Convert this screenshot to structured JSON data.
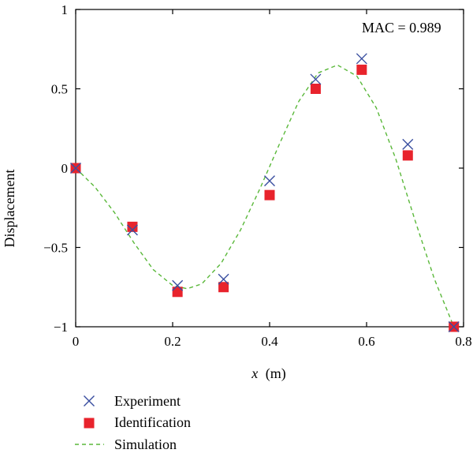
{
  "chart_data": {
    "type": "scatter",
    "title": "",
    "xlabel_var": "x",
    "xlabel_unit": "(m)",
    "ylabel": "Displacement",
    "xlim": [
      0,
      0.8
    ],
    "ylim": [
      -1,
      1
    ],
    "x_ticks": [
      0,
      0.2,
      0.4,
      0.6,
      0.8
    ],
    "x_tick_labels": [
      "0",
      "0.2",
      "0.4",
      "0.6",
      "0.8"
    ],
    "y_ticks": [
      -1,
      -0.5,
      0,
      0.5,
      1
    ],
    "y_tick_labels": [
      "−1",
      "−0.5",
      "0",
      "0.5",
      "1"
    ],
    "grid": false,
    "legend_position": "bottom-left",
    "annotation": "MAC = 0.989",
    "series": [
      {
        "name": "Experiment",
        "marker": "x",
        "color": "#3a4fa0",
        "x": [
          0,
          0.117,
          0.21,
          0.305,
          0.4,
          0.495,
          0.59,
          0.685,
          0.78
        ],
        "y": [
          0,
          -0.39,
          -0.74,
          -0.7,
          -0.08,
          0.56,
          0.69,
          0.15,
          -1.0
        ]
      },
      {
        "name": "Identification",
        "marker": "square",
        "color": "#e8232c",
        "x": [
          0,
          0.117,
          0.21,
          0.305,
          0.4,
          0.495,
          0.59,
          0.685,
          0.78
        ],
        "y": [
          0,
          -0.37,
          -0.78,
          -0.75,
          -0.17,
          0.5,
          0.62,
          0.08,
          -1.0
        ]
      },
      {
        "name": "Simulation",
        "marker": "dashed-line",
        "color": "#5ab83a",
        "x": [
          0,
          0.04,
          0.08,
          0.12,
          0.16,
          0.2,
          0.23,
          0.26,
          0.3,
          0.34,
          0.38,
          0.42,
          0.46,
          0.5,
          0.54,
          0.58,
          0.62,
          0.66,
          0.7,
          0.74,
          0.78
        ],
        "y": [
          0,
          -0.12,
          -0.28,
          -0.47,
          -0.64,
          -0.74,
          -0.76,
          -0.73,
          -0.6,
          -0.39,
          -0.13,
          0.15,
          0.42,
          0.6,
          0.65,
          0.58,
          0.38,
          0.06,
          -0.33,
          -0.7,
          -1.0
        ]
      }
    ]
  }
}
